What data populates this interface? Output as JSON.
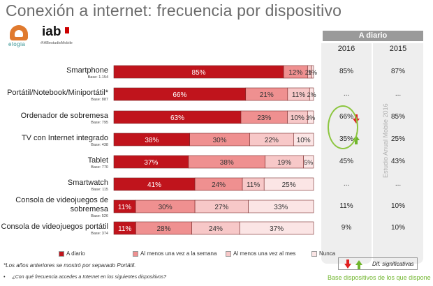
{
  "title": "Conexión a internet: frecuencia por dispositivo",
  "logos": {
    "elogia_text": "eLOGIA",
    "iab_text": "iab",
    "iab_sub": "#IABestudioMobile"
  },
  "panel": {
    "header": "A diario",
    "years": [
      "2016",
      "2015"
    ]
  },
  "vertical_note": "Estudio Anual Mobile 2016",
  "legend": [
    {
      "label": "A diario",
      "color": "#c0141c"
    },
    {
      "label": "Al menos una vez a la semana",
      "color": "#ef9090"
    },
    {
      "label": "Al menos una vez al mes",
      "color": "#f7c8c8"
    },
    {
      "label": "Nunca",
      "color": "#fbe5e5"
    }
  ],
  "footnotes": {
    "note1": "*Los años anteriores se mostró por separado Portátil.",
    "note2": "¿Con qué frecuencia accedes a Internet en los siguientes dispositivos?"
  },
  "dif_label": "Dif. significativas",
  "base_note": "Base dispositivos de los que dispone",
  "chart_data": {
    "type": "bar",
    "orientation": "horizontal",
    "stacked": true,
    "xlim": [
      0,
      100
    ],
    "series": [
      {
        "name": "A diario",
        "color": "#c0141c"
      },
      {
        "name": "Al menos una vez a la semana",
        "color": "#ef9090"
      },
      {
        "name": "Al menos una vez al mes",
        "color": "#f7c8c8"
      },
      {
        "name": "Nunca",
        "color": "#fbe5e5"
      }
    ],
    "categories": [
      {
        "name": "Smartphone",
        "base": "Base: 1.154",
        "values": [
          85,
          12,
          2,
          1
        ],
        "labels": [
          "85%",
          "12%",
          "2%",
          "1%"
        ],
        "d2016": "85%",
        "d2015": "87%",
        "signif": ""
      },
      {
        "name": "Portátil/Notebook/Miniportátil*",
        "base": "Base: 887",
        "values": [
          66,
          21,
          11,
          2
        ],
        "labels": [
          "66%",
          "21%",
          "11%",
          "2%"
        ],
        "d2016": "...",
        "d2015": "...",
        "signif": ""
      },
      {
        "name": "Ordenador de sobremesa",
        "base": "Base: 795",
        "values": [
          63,
          23,
          10,
          3
        ],
        "labels": [
          "63%",
          "23%",
          "10%",
          "3%"
        ],
        "d2016": "66%",
        "d2015": "85%",
        "signif": "down"
      },
      {
        "name": "TV con Internet integrado",
        "base": "Base: 438",
        "values": [
          38,
          30,
          22,
          10
        ],
        "labels": [
          "38%",
          "30%",
          "22%",
          "10%"
        ],
        "d2016": "35%",
        "d2015": "25%",
        "signif": "up"
      },
      {
        "name": "Tablet",
        "base": "Base: 770",
        "values": [
          37,
          38,
          19,
          5
        ],
        "labels": [
          "37%",
          "38%",
          "19%",
          "5%"
        ],
        "d2016": "45%",
        "d2015": "43%",
        "signif": ""
      },
      {
        "name": "Smartwatch",
        "base": "Base: 115",
        "values": [
          41,
          24,
          11,
          25
        ],
        "labels": [
          "41%",
          "24%",
          "11%",
          "25%"
        ],
        "d2016": "...",
        "d2015": "...",
        "signif": ""
      },
      {
        "name": "Consola de videojuegos de sobremesa",
        "base": "Base: 526",
        "values": [
          11,
          30,
          27,
          33
        ],
        "labels": [
          "11%",
          "30%",
          "27%",
          "33%"
        ],
        "d2016": "11%",
        "d2015": "10%",
        "signif": ""
      },
      {
        "name": "Consola de videojuegos portátil",
        "base": "Base: 374",
        "values": [
          11,
          28,
          24,
          37
        ],
        "labels": [
          "11%",
          "28%",
          "24%",
          "37%"
        ],
        "d2016": "9%",
        "d2015": "10%",
        "signif": ""
      }
    ]
  }
}
